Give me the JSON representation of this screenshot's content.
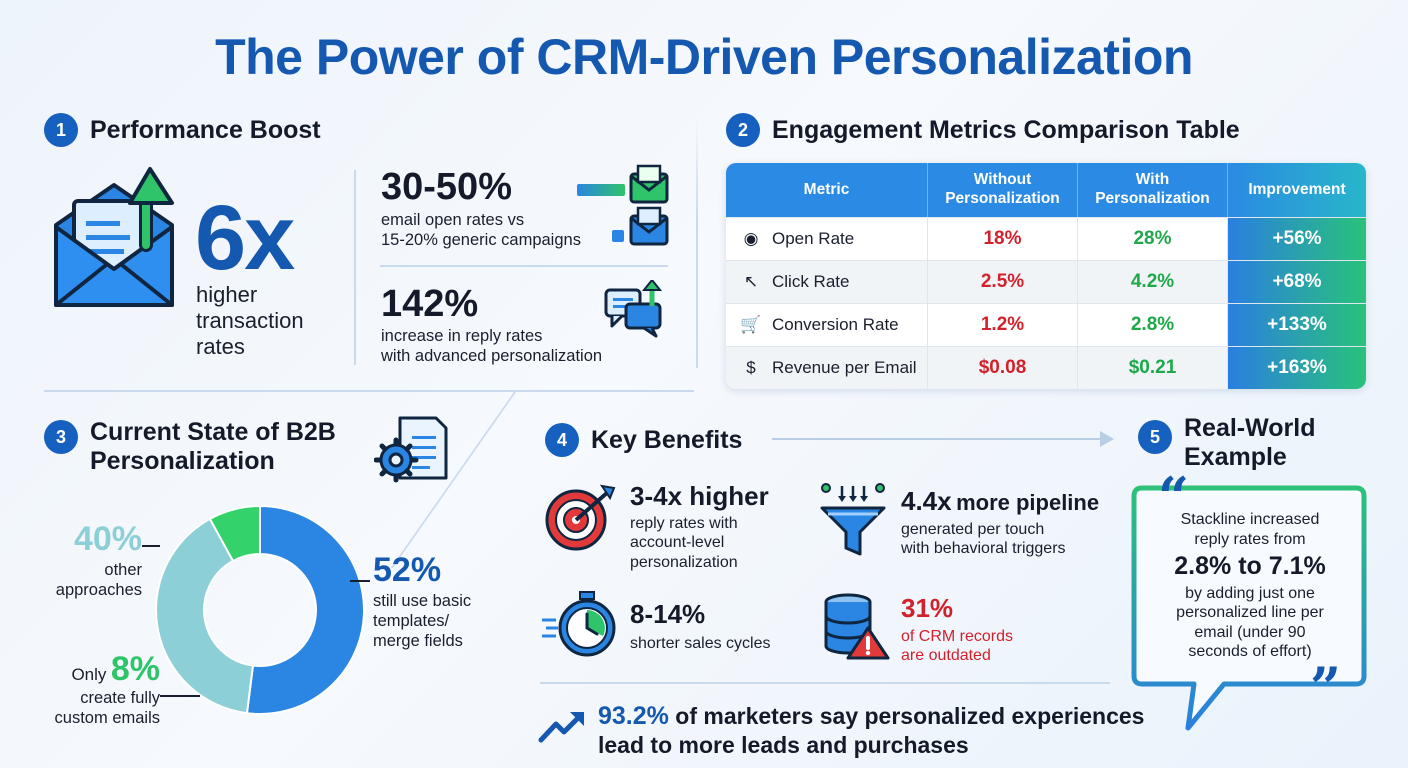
{
  "title": "The Power of CRM-Driven Personalization",
  "colors": {
    "primary_blue": "#1458b0",
    "accent_green": "#22c55e",
    "red": "#d3212c",
    "teal": "#8ccfd6"
  },
  "section1": {
    "number": "1",
    "heading": "Performance Boost",
    "big_stat": "6x",
    "big_stat_text": [
      "higher",
      "transaction",
      "rates"
    ],
    "stat_a": {
      "value": "30-50%",
      "line1": "email open rates vs",
      "line2": "15-20% generic campaigns"
    },
    "stat_b": {
      "value": "142%",
      "line1": "increase in reply rates",
      "line2": "with advanced personalization"
    },
    "icons": [
      "email-growth-icon",
      "email-open-icon",
      "chat-growth-icon"
    ]
  },
  "section2": {
    "number": "2",
    "heading": "Engagement Metrics Comparison Table",
    "columns": [
      "Metric",
      "Without Personalization",
      "With Personalization",
      "Improvement"
    ],
    "rows": [
      {
        "icon": "eye-icon",
        "glyph": "◉",
        "metric": "Open Rate",
        "without": "18%",
        "with": "28%",
        "improvement": "+56%"
      },
      {
        "icon": "cursor-click-icon",
        "glyph": "↖",
        "metric": "Click Rate",
        "without": "2.5%",
        "with": "4.2%",
        "improvement": "+68%"
      },
      {
        "icon": "cart-icon",
        "glyph": "🛒",
        "metric": "Conversion Rate",
        "without": "1.2%",
        "with": "2.8%",
        "improvement": "+133%"
      },
      {
        "icon": "dollar-icon",
        "glyph": "$",
        "metric": "Revenue per Email",
        "without": "$0.08",
        "with": "$0.21",
        "improvement": "+163%"
      }
    ]
  },
  "section3": {
    "number": "3",
    "heading_line1": "Current State of B2B",
    "heading_line2": "Personalization",
    "segments": [
      {
        "value": "52%",
        "label_line1": "still use basic",
        "label_line2": "templates/",
        "label_line3": "merge fields",
        "percent": 52,
        "color": "#2a86e2"
      },
      {
        "value": "40%",
        "label_line1": "other",
        "label_line2": "approaches",
        "percent": 40,
        "color": "#8ccfd6"
      },
      {
        "prefix": "Only",
        "value": "8%",
        "label_line1": "create fully",
        "label_line2": "custom emails",
        "percent": 8,
        "color": "#33d26a"
      }
    ]
  },
  "section4": {
    "number": "4",
    "heading": "Key Benefits",
    "b1": {
      "big": "3-4x higher",
      "l1": "reply rates with",
      "l2": "account-level",
      "l3": "personalization"
    },
    "b2": {
      "big": "4.4x",
      "big_rest": "more pipeline",
      "l1": "generated per touch",
      "l2": "with behavioral triggers"
    },
    "b3": {
      "big": "8-14%",
      "l1": "shorter sales cycles"
    },
    "b4": {
      "big": "31%",
      "l1": "of CRM records",
      "l2": "are outdated"
    },
    "footer_value": "93.2%",
    "footer_line1": "of marketers say personalized experiences",
    "footer_line2": "lead to more leads and purchases"
  },
  "section5": {
    "number": "5",
    "heading_line1": "Real-World",
    "heading_line2": "Example",
    "l1": "Stackline increased",
    "l2": "reply rates from",
    "highlight": "2.8% to 7.1%",
    "l3": "by adding just one",
    "l4": "personalized line per",
    "l5": "email (under 90",
    "l6": "seconds of effort)"
  }
}
